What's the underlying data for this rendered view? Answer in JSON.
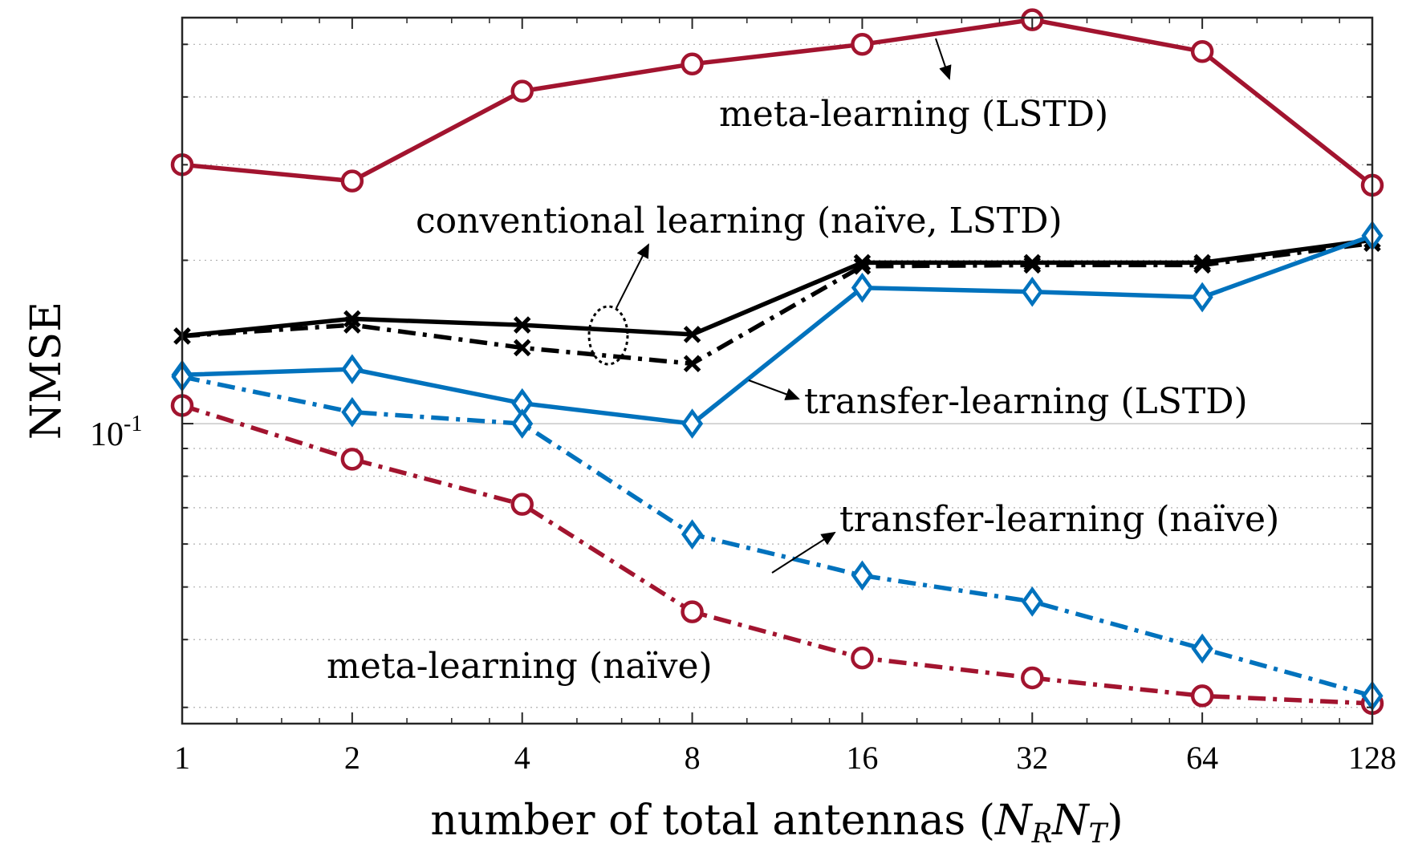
{
  "chart_data": {
    "type": "line",
    "xlabel": "number of total antennas (",
    "xlabel_math": "N_R N_T",
    "xlabel_tail": ")",
    "ylabel": "NMSE",
    "ylabel_tick": "10",
    "ylabel_tick_exp": "-1",
    "x": [
      1,
      2,
      4,
      8,
      16,
      32,
      64,
      128
    ],
    "x_tick_labels": [
      "1",
      "2",
      "4",
      "8",
      "16",
      "32",
      "64",
      "128"
    ],
    "xscale": "log2",
    "yscale": "log",
    "ylim": [
      0.028,
      0.56
    ],
    "grid": "y-dotted",
    "series": [
      {
        "values": [
          0.3,
          0.28,
          0.41,
          0.46,
          0.5,
          0.555,
          0.485,
          0.275
        ],
        "color": "#a2142f",
        "style": "solid",
        "marker": "circle"
      },
      {
        "values": [
          0.108,
          0.086,
          0.071,
          0.045,
          0.037,
          0.034,
          0.0315,
          0.0305
        ],
        "color": "#a2142f",
        "style": "dashdot",
        "marker": "circle"
      },
      {
        "values": [
          0.145,
          0.156,
          0.152,
          0.146,
          0.198,
          0.198,
          0.198,
          0.218
        ],
        "color": "#000000",
        "style": "solid",
        "marker": "x"
      },
      {
        "values": [
          0.145,
          0.152,
          0.138,
          0.129,
          0.195,
          0.196,
          0.196,
          0.215
        ],
        "color": "#000000",
        "style": "dashdot",
        "marker": "x"
      },
      {
        "values": [
          0.123,
          0.126,
          0.109,
          0.1,
          0.178,
          0.175,
          0.171,
          0.222
        ],
        "color": "#0072bd",
        "style": "solid",
        "marker": "diamond"
      },
      {
        "values": [
          0.122,
          0.105,
          0.1,
          0.0625,
          0.0525,
          0.047,
          0.0385,
          0.0315
        ],
        "color": "#0072bd",
        "style": "dashdot",
        "marker": "diamond"
      }
    ],
    "annotations": [
      {
        "text": "meta-learning (LSTD)"
      },
      {
        "text": "conventional learning (naïve, LSTD)"
      },
      {
        "text": "transfer-learning (LSTD)"
      },
      {
        "text": "transfer-learning (naïve)"
      },
      {
        "text": "meta-learning (naïve)"
      }
    ]
  }
}
